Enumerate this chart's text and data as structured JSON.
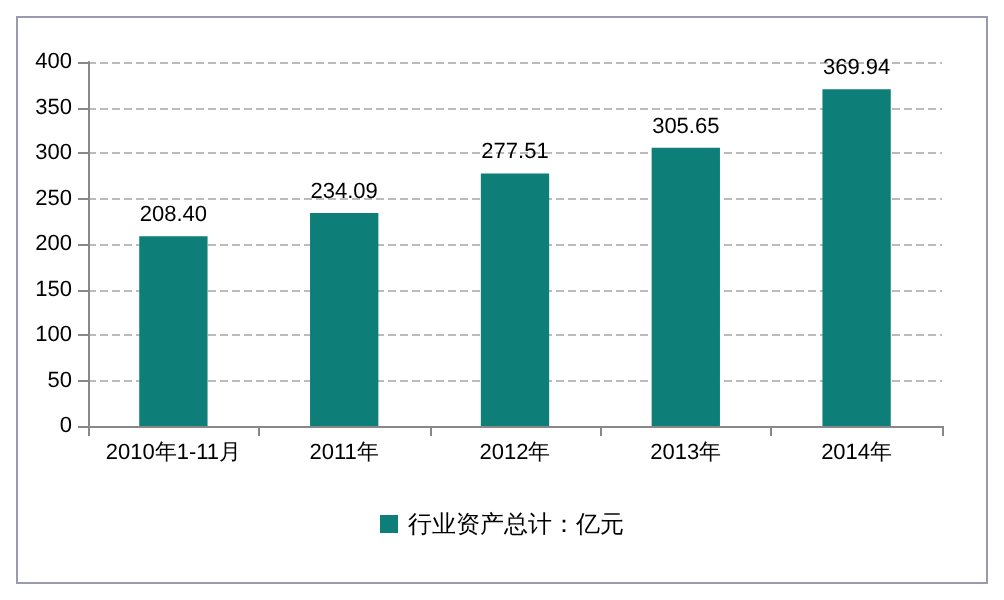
{
  "chart_data": {
    "type": "bar",
    "categories": [
      "2010年1-11月",
      "2011年",
      "2012年",
      "2013年",
      "2014年"
    ],
    "series": [
      {
        "name": "行业资产总计：亿元",
        "color": "#0e7f78",
        "values": [
          208.4,
          234.09,
          277.51,
          305.65,
          369.94
        ]
      }
    ],
    "value_labels": [
      "208.40",
      "234.09",
      "277.51",
      "305.65",
      "369.94"
    ],
    "ylim": [
      0,
      400
    ],
    "yticks": [
      0,
      50,
      100,
      150,
      200,
      250,
      300,
      350,
      400
    ],
    "grid": "y",
    "legend": "bottom"
  }
}
